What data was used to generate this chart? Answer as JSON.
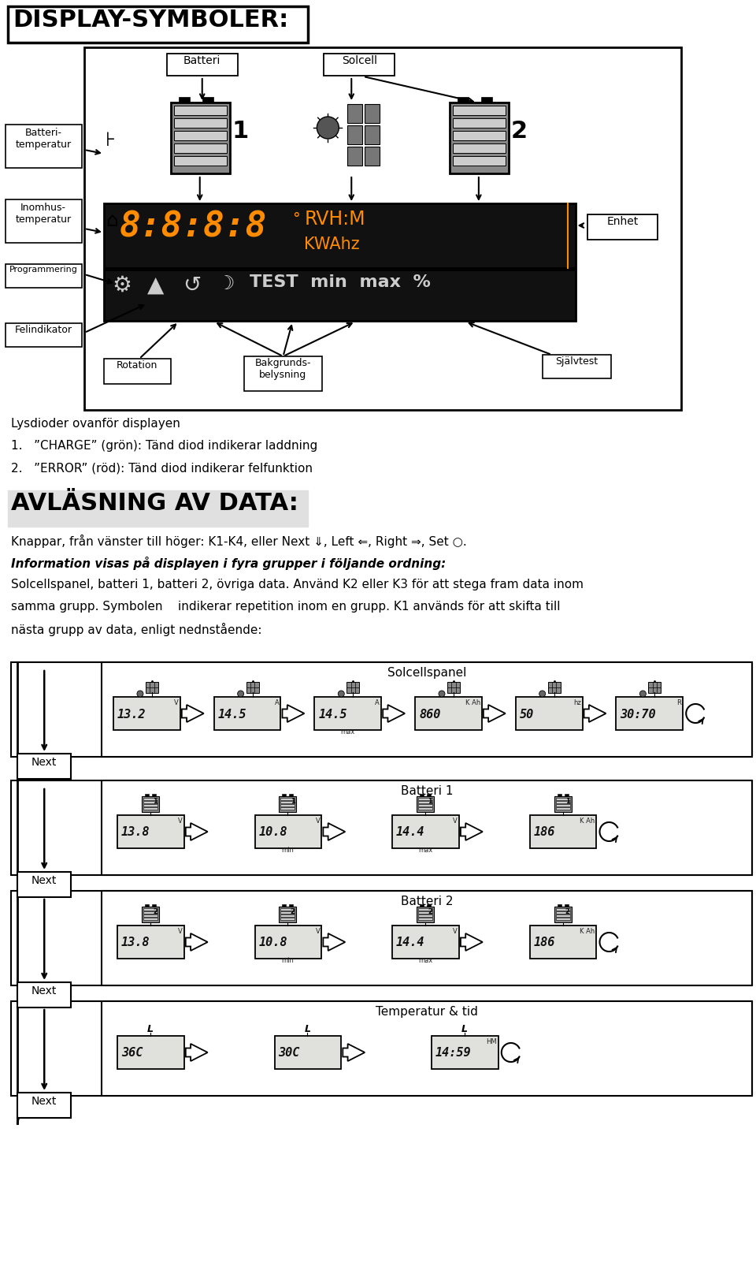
{
  "title": "DISPLAY-SYMBOLER:",
  "avlasning_title": "AVLÄSNING AV DATA:",
  "bg_color": "#ffffff",
  "text_color": "#000000",
  "lcd_orange": "#ff8c00",
  "lcd_bg": "#1a1a1a",
  "display_bg": "#e0e0dc",
  "groups": [
    "Solcellspanel",
    "Batteri 1",
    "Batteri 2",
    "Temperatur & tid"
  ],
  "line_lysdioder": "Lysdioder ovanför displayen",
  "line_charge": "1.   ”CHARGE” (grön): Tänd diod indikerar laddning",
  "line_error": "2.   ”ERROR” (röd): Tänd diod indikerar felfunktion",
  "line_knappar": "Knappar, från vänster till höger: K1-K4, eller Next ⇓, Left ⇐, Right ⇒, Set ○.",
  "line_info_bold": "Information visas på displayen i fyra grupper i följande ordning:",
  "line_sol": "Solcellspanel, batteri 1, batteri 2, övriga data. Använd K2 eller K3 för att stega fram data inom",
  "line_samma": "samma grupp. Symbolen    indikerar repetition inom en grupp. K1 används för att skifta till",
  "line_nasta": "nästa grupp av data, enligt nednstående:",
  "sol_items": [
    {
      "text": "13.2",
      "unit": "V",
      "sub": ""
    },
    {
      "text": "14.5",
      "unit": "A",
      "sub": ""
    },
    {
      "text": "14.5",
      "unit": "A",
      "sub": "max"
    },
    {
      "text": "860",
      "unit": "K Ah",
      "sub": ""
    },
    {
      "text": "50",
      "unit": "hz",
      "sub": ""
    },
    {
      "text": "30:70",
      "unit": "R",
      "sub": ""
    }
  ],
  "bat1_items": [
    {
      "text": "13.8",
      "unit": "V",
      "sub": ""
    },
    {
      "text": "10.8",
      "unit": "V",
      "sub": "min"
    },
    {
      "text": "14.4",
      "unit": "V",
      "sub": "max"
    },
    {
      "text": "186",
      "unit": "K Ah",
      "sub": ""
    }
  ],
  "bat2_items": [
    {
      "text": "13.8",
      "unit": "V",
      "sub": ""
    },
    {
      "text": "10.8",
      "unit": "V",
      "sub": "min"
    },
    {
      "text": "14.4",
      "unit": "V",
      "sub": "max"
    },
    {
      "text": "186",
      "unit": "K Ah",
      "sub": ""
    }
  ],
  "temp_items": [
    {
      "text": "36C",
      "unit": "",
      "sub": ""
    },
    {
      "text": "30C",
      "unit": "",
      "sub": ""
    },
    {
      "text": "14:59",
      "unit": "HM",
      "sub": ""
    }
  ]
}
